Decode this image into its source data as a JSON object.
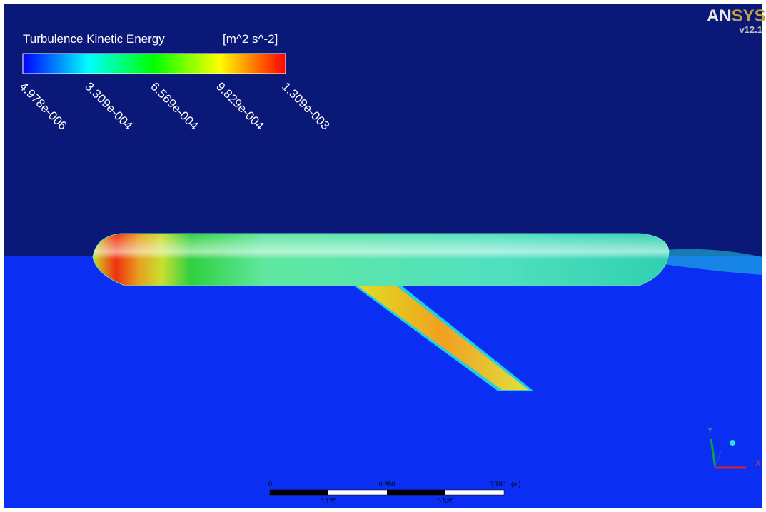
{
  "legend": {
    "title": "Turbulence Kinetic Energy",
    "unit": "[m^2 s^-2]",
    "ticks": [
      "4.978e-006",
      "3.309e-004",
      "6.569e-004",
      "9.829e-004",
      "1.309e-003"
    ]
  },
  "logo": {
    "brand_left": "AN",
    "brand_right": "SYS",
    "version": "v12.1"
  },
  "scale_bar": {
    "top_labels": [
      "0",
      "0.350",
      "0.700"
    ],
    "unit": "(m)",
    "bottom_labels": [
      "0.175",
      "0.525"
    ]
  },
  "axes": {
    "y": "Y",
    "x": "X"
  }
}
